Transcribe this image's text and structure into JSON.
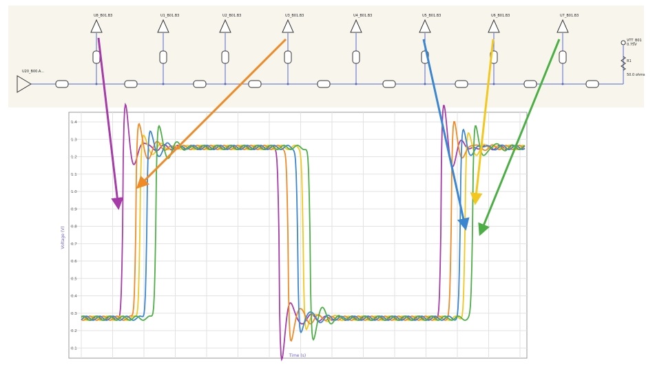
{
  "schematic": {
    "driver": "U20_B00.A...",
    "receivers": [
      "U8_B01.B3",
      "U1_B01.B3",
      "U2_B01.B3",
      "U3_B01.B3",
      "U4_B01.B3",
      "U5_B01.B3",
      "U6_B01.B3",
      "U7_B01.B3"
    ],
    "termination": {
      "source": "VTT_B01",
      "source_value": "0.75V",
      "resistor": "R1",
      "resistor_value": "50.0 ohms"
    }
  },
  "plot": {
    "y_axis_label": "Voltage (V)",
    "x_axis_label": "Time (s)",
    "yticks": [
      "1.4",
      "1.3",
      "1.2",
      "1.1",
      "1.0",
      "0.9",
      "0.8",
      "0.7",
      "0.6",
      "0.5",
      "0.4",
      "0.3",
      "0.2",
      "0.1"
    ]
  }
}
